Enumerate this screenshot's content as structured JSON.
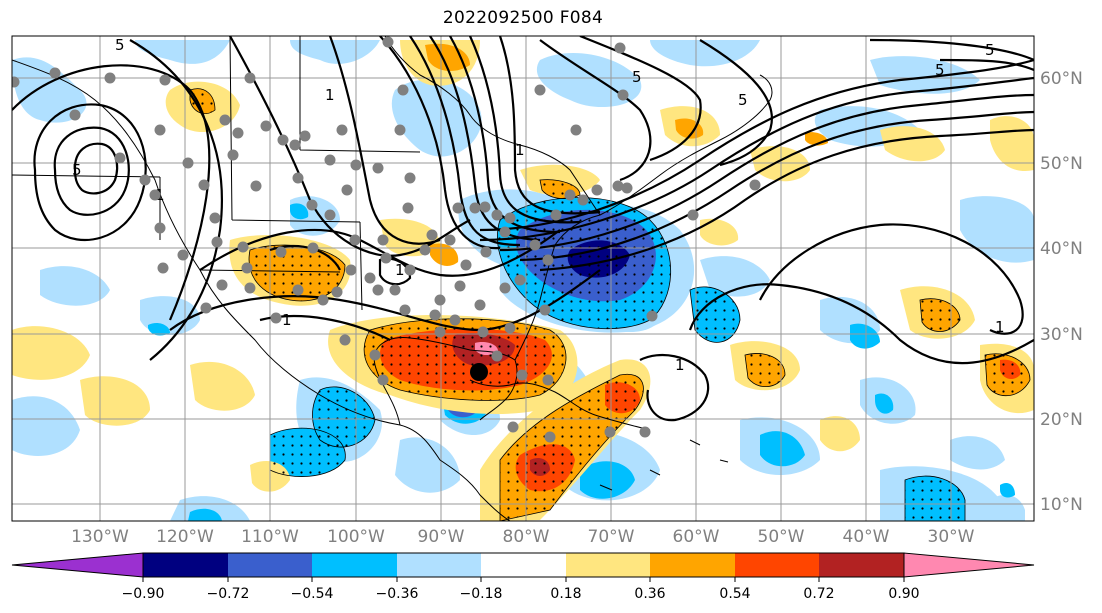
{
  "title": "2022092500 F084",
  "lat_labels": [
    "60°N",
    "50°N",
    "40°N",
    "30°N",
    "20°N",
    "10°N"
  ],
  "lon_labels": [
    "130°W",
    "120°W",
    "110°W",
    "100°W",
    "90°W",
    "80°W",
    "70°W",
    "60°W",
    "50°W",
    "40°W",
    "30°W"
  ],
  "colorbar": {
    "tick_labels": [
      "−0.90",
      "−0.72",
      "−0.54",
      "−0.36",
      "−0.18",
      "0.18",
      "0.36",
      "0.54",
      "0.72",
      "0.90"
    ],
    "colors": [
      "#9b30d0",
      "#000080",
      "#3a5fcd",
      "#00bfff",
      "#b0e0ff",
      "#ffffff",
      "#ffe680",
      "#ffa500",
      "#ff4500",
      "#b22222",
      "#ff88b0"
    ]
  },
  "contour_labels": [
    "5",
    "5",
    "5",
    "5",
    "5",
    "5",
    "1",
    "1",
    "1",
    "1",
    "1",
    "1",
    "1"
  ],
  "colors": {
    "neg_1": "#b0e0ff",
    "neg_2": "#00bfff",
    "neg_3": "#3a5fcd",
    "neg_4": "#000080",
    "pos_1": "#ffe680",
    "pos_2": "#ffa500",
    "pos_3": "#ff4500",
    "pos_4": "#b22222",
    "pos_5": "#ff88b0",
    "station": "#808080",
    "storm": "#000000"
  }
}
